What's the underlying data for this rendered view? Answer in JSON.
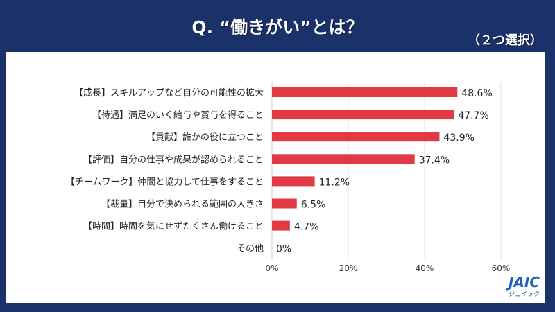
{
  "header": {
    "title": "Q. “働きがい”とは？",
    "note": "（２つ選択）"
  },
  "logo": {
    "text": "JAIC",
    "subtext": "ジェイック"
  },
  "colors": {
    "background": "#1b3169",
    "bar": "#e03a45",
    "panel": "#ffffff"
  },
  "chart_data": {
    "type": "bar",
    "orientation": "horizontal",
    "categories": [
      "【成長】スキルアップなど自分の可能性の拡大",
      "【待遇】満足のいく給与や賞与を得ること",
      "【貢献】誰かの役に立つこと",
      "【評価】自分の仕事や成果が認められること",
      "【チームワーク】仲間と協力して仕事をすること",
      "【裁量】自分で決められる範囲の大きさ",
      "【時間】時間を気にせずたくさん働けること",
      "その他"
    ],
    "values": [
      48.6,
      47.7,
      43.9,
      37.4,
      11.2,
      6.5,
      4.7,
      0
    ],
    "value_labels": [
      "48.6%",
      "47.7%",
      "43.9%",
      "37.4%",
      "11.2%",
      "6.5%",
      "4.7%",
      "0%"
    ],
    "xlim": [
      0,
      60
    ],
    "xticks": [
      "0%",
      "20%",
      "40%",
      "60%"
    ],
    "grid": true
  }
}
